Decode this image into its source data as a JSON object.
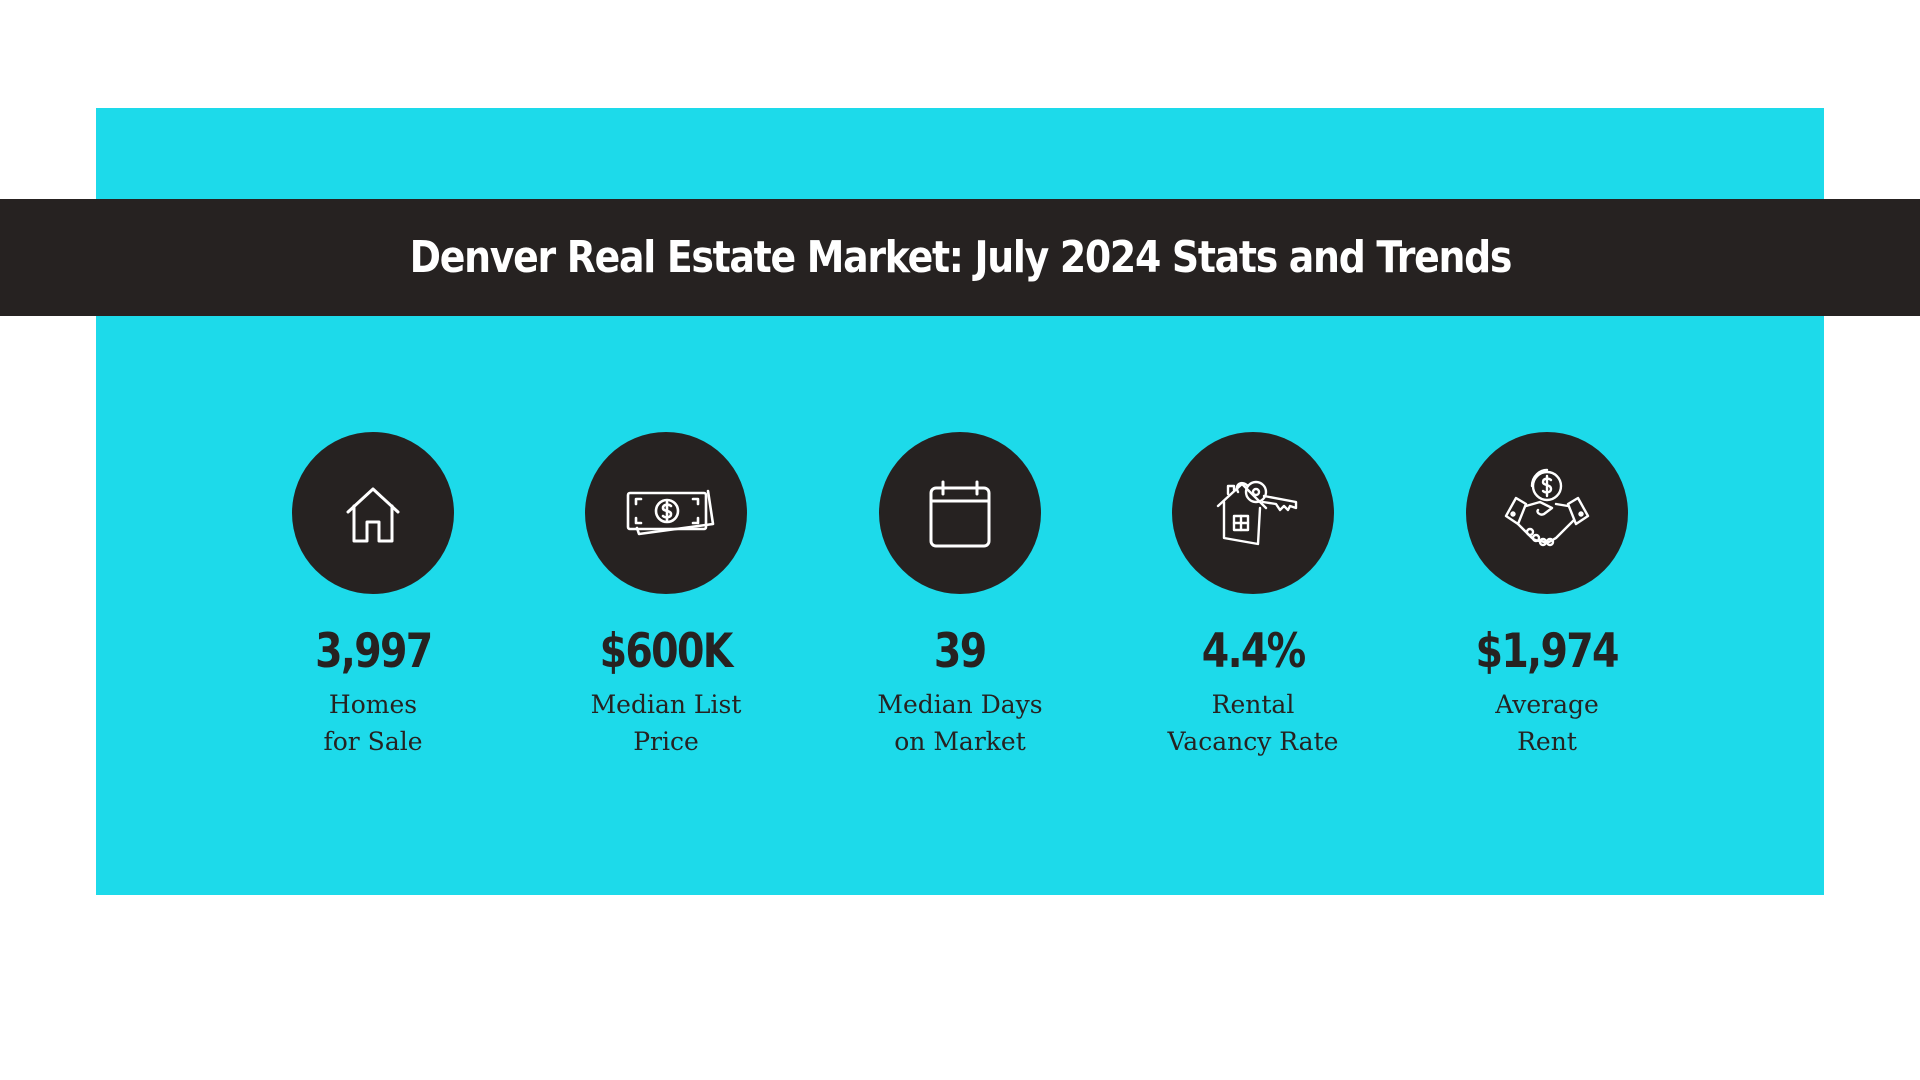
{
  "title": "Denver Real Estate Market: July 2024 Stats and Trends",
  "colors": {
    "panel": "#1ddaea",
    "banner": "#262221",
    "text_dark": "#262221",
    "text_light": "#ffffff",
    "page": "#ffffff"
  },
  "stats": [
    {
      "icon": "house-icon",
      "value": "3,997",
      "label_line1": "Homes",
      "label_line2": "for Sale"
    },
    {
      "icon": "money-bill-icon",
      "value": "$600K",
      "label_line1": "Median List",
      "label_line2": "Price"
    },
    {
      "icon": "calendar-icon",
      "value": "39",
      "label_line1": "Median Days",
      "label_line2": "on Market"
    },
    {
      "icon": "house-key-icon",
      "value": "4.4%",
      "label_line1": "Rental",
      "label_line2": "Vacancy Rate"
    },
    {
      "icon": "handshake-dollar-icon",
      "value": "$1,974",
      "label_line1": "Average",
      "label_line2": "Rent"
    }
  ]
}
